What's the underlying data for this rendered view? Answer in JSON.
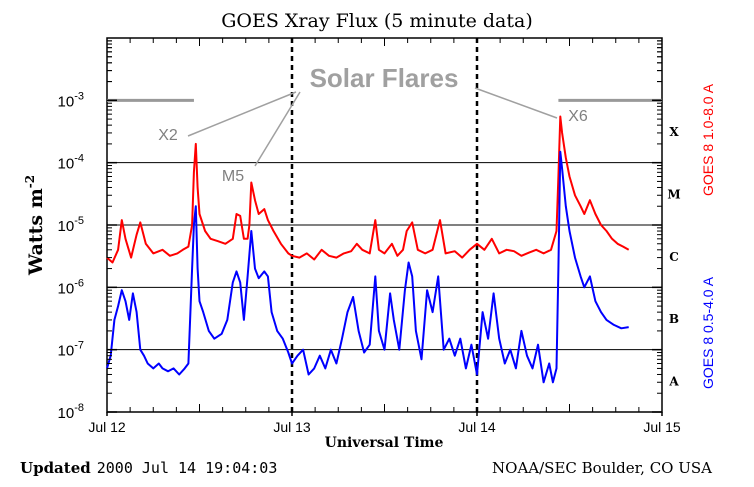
{
  "chart_data": {
    "type": "line",
    "title": "GOES Xray Flux (5 minute data)",
    "xlabel": "Universal Time",
    "ylabel": "Watts m",
    "ylabel_superscript": "-2",
    "yscale": "log",
    "ylim": [
      1e-08,
      0.01
    ],
    "xlim": [
      0,
      3
    ],
    "x_ticks": [
      {
        "x": 0,
        "label": "Jul 12"
      },
      {
        "x": 1,
        "label": "Jul 13"
      },
      {
        "x": 2,
        "label": "Jul 14"
      },
      {
        "x": 3,
        "label": "Jul 15"
      }
    ],
    "y_ticks": [
      {
        "exp": -8,
        "label": "10",
        "sup": "-8"
      },
      {
        "exp": -7,
        "label": "10",
        "sup": "-7"
      },
      {
        "exp": -6,
        "label": "10",
        "sup": "-6"
      },
      {
        "exp": -5,
        "label": "10",
        "sup": "-5"
      },
      {
        "exp": -4,
        "label": "10",
        "sup": "-4"
      },
      {
        "exp": -3,
        "label": "10",
        "sup": "-3"
      }
    ],
    "class_labels": [
      {
        "label": "A",
        "level": 3.2e-08
      },
      {
        "label": "B",
        "level": 3.2e-07
      },
      {
        "label": "C",
        "level": 3.2e-06
      },
      {
        "label": "M",
        "level": 3.2e-05
      },
      {
        "label": "X",
        "level": 0.00032
      }
    ],
    "grid_levels": [
      1e-07,
      1e-06,
      1e-05,
      0.0001
    ],
    "threshold_level": 0.001,
    "series": [
      {
        "name": "GOES 8 1.0-8.0 A",
        "color": "#ff0000",
        "points": [
          [
            0.0,
            3e-06
          ],
          [
            0.03,
            2.5e-06
          ],
          [
            0.06,
            4e-06
          ],
          [
            0.08,
            1.2e-05
          ],
          [
            0.1,
            6e-06
          ],
          [
            0.13,
            3e-06
          ],
          [
            0.16,
            7e-06
          ],
          [
            0.18,
            1.1e-05
          ],
          [
            0.21,
            5e-06
          ],
          [
            0.25,
            3.5e-06
          ],
          [
            0.3,
            4e-06
          ],
          [
            0.34,
            3.2e-06
          ],
          [
            0.38,
            3.5e-06
          ],
          [
            0.41,
            4e-06
          ],
          [
            0.44,
            4.5e-06
          ],
          [
            0.46,
            1e-05
          ],
          [
            0.47,
            7e-05
          ],
          [
            0.48,
            0.0002
          ],
          [
            0.49,
            4e-05
          ],
          [
            0.5,
            1.5e-05
          ],
          [
            0.53,
            8e-06
          ],
          [
            0.56,
            6e-06
          ],
          [
            0.6,
            5.5e-06
          ],
          [
            0.64,
            5e-06
          ],
          [
            0.68,
            6e-06
          ],
          [
            0.7,
            1.5e-05
          ],
          [
            0.72,
            1.4e-05
          ],
          [
            0.74,
            6e-06
          ],
          [
            0.76,
            6e-06
          ],
          [
            0.77,
            1e-05
          ],
          [
            0.78,
            4.8e-05
          ],
          [
            0.8,
            2.5e-05
          ],
          [
            0.82,
            1.5e-05
          ],
          [
            0.85,
            1.8e-05
          ],
          [
            0.87,
            1.2e-05
          ],
          [
            0.9,
            8e-06
          ],
          [
            0.94,
            5e-06
          ],
          [
            0.98,
            3.5e-06
          ],
          [
            1.0,
            3.2e-06
          ],
          [
            1.04,
            3e-06
          ],
          [
            1.08,
            3.5e-06
          ],
          [
            1.12,
            2.8e-06
          ],
          [
            1.16,
            4e-06
          ],
          [
            1.2,
            3.2e-06
          ],
          [
            1.24,
            3e-06
          ],
          [
            1.28,
            3.5e-06
          ],
          [
            1.32,
            3.8e-06
          ],
          [
            1.35,
            5e-06
          ],
          [
            1.38,
            4e-06
          ],
          [
            1.42,
            3.5e-06
          ],
          [
            1.45,
            1.2e-05
          ],
          [
            1.47,
            4e-06
          ],
          [
            1.5,
            3.5e-06
          ],
          [
            1.54,
            5e-06
          ],
          [
            1.57,
            3.2e-06
          ],
          [
            1.6,
            4e-06
          ],
          [
            1.62,
            8e-06
          ],
          [
            1.65,
            1.1e-05
          ],
          [
            1.68,
            4e-06
          ],
          [
            1.72,
            3.5e-06
          ],
          [
            1.76,
            4e-06
          ],
          [
            1.8,
            1.2e-05
          ],
          [
            1.83,
            3.5e-06
          ],
          [
            1.88,
            3.8e-06
          ],
          [
            1.92,
            3e-06
          ],
          [
            1.96,
            4e-06
          ],
          [
            2.0,
            5e-06
          ],
          [
            2.04,
            4e-06
          ],
          [
            2.08,
            6e-06
          ],
          [
            2.12,
            3.5e-06
          ],
          [
            2.16,
            4e-06
          ],
          [
            2.2,
            3.8e-06
          ],
          [
            2.24,
            3.2e-06
          ],
          [
            2.28,
            3.6e-06
          ],
          [
            2.32,
            4e-06
          ],
          [
            2.36,
            3.5e-06
          ],
          [
            2.4,
            4e-06
          ],
          [
            2.43,
            8e-06
          ],
          [
            2.44,
            6e-05
          ],
          [
            2.45,
            0.00055
          ],
          [
            2.46,
            0.0003
          ],
          [
            2.48,
            0.00012
          ],
          [
            2.5,
            6e-05
          ],
          [
            2.53,
            3e-05
          ],
          [
            2.56,
            2e-05
          ],
          [
            2.58,
            1.5e-05
          ],
          [
            2.61,
            2.5e-05
          ],
          [
            2.64,
            1.5e-05
          ],
          [
            2.67,
            1e-05
          ],
          [
            2.7,
            8e-06
          ],
          [
            2.73,
            6e-06
          ],
          [
            2.76,
            5e-06
          ],
          [
            2.79,
            4.5e-06
          ],
          [
            2.82,
            4e-06
          ]
        ]
      },
      {
        "name": "GOES 8 0.5-4.0 A",
        "color": "#0000ff",
        "points": [
          [
            0.0,
            5e-08
          ],
          [
            0.02,
            8e-08
          ],
          [
            0.04,
            3e-07
          ],
          [
            0.06,
            5e-07
          ],
          [
            0.08,
            9e-07
          ],
          [
            0.1,
            6e-07
          ],
          [
            0.12,
            3e-07
          ],
          [
            0.14,
            8e-07
          ],
          [
            0.16,
            4e-07
          ],
          [
            0.18,
            1e-07
          ],
          [
            0.2,
            8e-08
          ],
          [
            0.22,
            6e-08
          ],
          [
            0.25,
            5e-08
          ],
          [
            0.28,
            6e-08
          ],
          [
            0.3,
            5e-08
          ],
          [
            0.33,
            4.5e-08
          ],
          [
            0.36,
            5e-08
          ],
          [
            0.39,
            4e-08
          ],
          [
            0.42,
            5e-08
          ],
          [
            0.44,
            6e-08
          ],
          [
            0.46,
            2e-06
          ],
          [
            0.47,
            1e-05
          ],
          [
            0.48,
            2e-05
          ],
          [
            0.49,
            2e-06
          ],
          [
            0.5,
            6e-07
          ],
          [
            0.52,
            4e-07
          ],
          [
            0.55,
            2e-07
          ],
          [
            0.58,
            1.5e-07
          ],
          [
            0.62,
            1.8e-07
          ],
          [
            0.65,
            3e-07
          ],
          [
            0.68,
            1.2e-06
          ],
          [
            0.7,
            1.8e-06
          ],
          [
            0.72,
            1.2e-06
          ],
          [
            0.74,
            3e-07
          ],
          [
            0.76,
            1.5e-06
          ],
          [
            0.78,
            8e-06
          ],
          [
            0.8,
            2e-06
          ],
          [
            0.82,
            1.4e-06
          ],
          [
            0.85,
            1.8e-06
          ],
          [
            0.87,
            1.5e-06
          ],
          [
            0.89,
            4e-07
          ],
          [
            0.92,
            2e-07
          ],
          [
            0.95,
            1.5e-07
          ],
          [
            0.98,
            9e-08
          ],
          [
            1.0,
            6e-08
          ],
          [
            1.03,
            8e-08
          ],
          [
            1.06,
            1e-07
          ],
          [
            1.09,
            4e-08
          ],
          [
            1.12,
            5e-08
          ],
          [
            1.15,
            8e-08
          ],
          [
            1.18,
            5e-08
          ],
          [
            1.21,
            1e-07
          ],
          [
            1.24,
            6e-08
          ],
          [
            1.27,
            1.5e-07
          ],
          [
            1.3,
            4e-07
          ],
          [
            1.33,
            7e-07
          ],
          [
            1.36,
            2e-07
          ],
          [
            1.39,
            9e-08
          ],
          [
            1.42,
            1.2e-07
          ],
          [
            1.45,
            1.5e-06
          ],
          [
            1.47,
            2e-07
          ],
          [
            1.5,
            1e-07
          ],
          [
            1.53,
            8e-07
          ],
          [
            1.55,
            3e-07
          ],
          [
            1.58,
            1e-07
          ],
          [
            1.61,
            9e-07
          ],
          [
            1.63,
            2.5e-06
          ],
          [
            1.65,
            1.5e-06
          ],
          [
            1.67,
            2e-07
          ],
          [
            1.7,
            7e-08
          ],
          [
            1.73,
            9e-07
          ],
          [
            1.76,
            4e-07
          ],
          [
            1.79,
            1.5e-06
          ],
          [
            1.82,
            1e-07
          ],
          [
            1.85,
            1.5e-07
          ],
          [
            1.88,
            8e-08
          ],
          [
            1.91,
            1.5e-07
          ],
          [
            1.94,
            5e-08
          ],
          [
            1.97,
            1.2e-07
          ],
          [
            2.0,
            4e-08
          ],
          [
            2.03,
            4e-07
          ],
          [
            2.06,
            1.5e-07
          ],
          [
            2.09,
            8e-07
          ],
          [
            2.12,
            1.5e-07
          ],
          [
            2.15,
            6e-08
          ],
          [
            2.18,
            1e-07
          ],
          [
            2.21,
            5e-08
          ],
          [
            2.24,
            2e-07
          ],
          [
            2.27,
            8e-08
          ],
          [
            2.3,
            5e-08
          ],
          [
            2.33,
            1.2e-07
          ],
          [
            2.36,
            3e-08
          ],
          [
            2.39,
            6e-08
          ],
          [
            2.41,
            3e-08
          ],
          [
            2.43,
            5e-08
          ],
          [
            2.44,
            2e-06
          ],
          [
            2.45,
            0.00015
          ],
          [
            2.46,
            8e-05
          ],
          [
            2.48,
            2e-05
          ],
          [
            2.5,
            8e-06
          ],
          [
            2.53,
            3e-06
          ],
          [
            2.56,
            1.5e-06
          ],
          [
            2.58,
            1e-06
          ],
          [
            2.61,
            1.5e-06
          ],
          [
            2.64,
            6e-07
          ],
          [
            2.67,
            4e-07
          ],
          [
            2.7,
            3e-07
          ],
          [
            2.74,
            2.5e-07
          ],
          [
            2.78,
            2.2e-07
          ],
          [
            2.82,
            2.3e-07
          ]
        ]
      }
    ],
    "annotations": {
      "title": "Solar Flares",
      "labels": [
        {
          "text": "X2",
          "x": 0.48,
          "y": 0.0002
        },
        {
          "text": "M5",
          "x": 0.78,
          "y": 4.8e-05
        },
        {
          "text": "X6",
          "x": 2.45,
          "y": 0.00055
        }
      ]
    },
    "right_labels": [
      {
        "text": "GOES 8 1.0-8.0 A",
        "color": "#ff0000"
      },
      {
        "text": "GOES 8 0.5-4.0 A",
        "color": "#0000ff"
      }
    ]
  },
  "footer": {
    "updated_prefix": "Updated",
    "updated_value": "2000 Jul 14 19:04:03",
    "source": "NOAA/SEC Boulder, CO USA"
  }
}
